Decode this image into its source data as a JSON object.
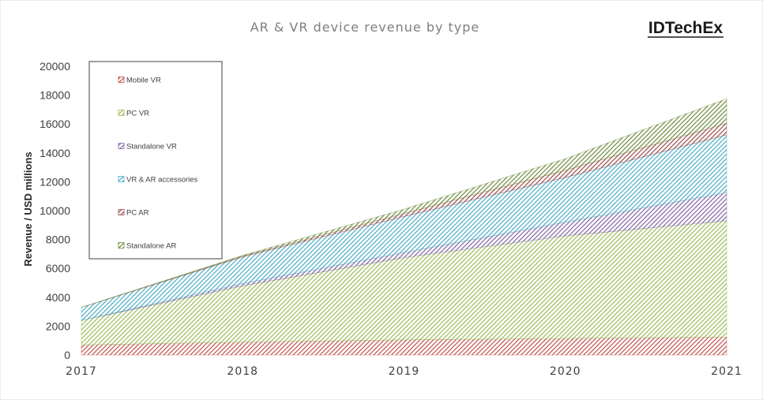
{
  "brand": "IDTechEx",
  "chart_data": {
    "type": "area",
    "stacked": true,
    "title": "AR & VR device revenue by type",
    "ylabel": "Revenue / USD millions",
    "xlabel": "",
    "x": [
      "2017",
      "2018",
      "2019",
      "2020",
      "2021"
    ],
    "ylim": [
      0,
      20000
    ],
    "yticks": [
      "0",
      "2000",
      "4000",
      "6000",
      "8000",
      "10000",
      "12000",
      "14000",
      "16000",
      "18000",
      "20000"
    ],
    "grid": false,
    "legend_position": "upper-left",
    "series": [
      {
        "name": "Mobile VR",
        "color": "#c0504d",
        "values": [
          700,
          900,
          1050,
          1150,
          1250
        ]
      },
      {
        "name": "PC VR",
        "color": "#9bbb59",
        "values": [
          1700,
          3900,
          5700,
          7100,
          8050
        ]
      },
      {
        "name": "Standalone VR",
        "color": "#8064a2",
        "values": [
          0,
          150,
          350,
          950,
          1950
        ]
      },
      {
        "name": "VR & AR accessories",
        "color": "#4bacc6",
        "values": [
          900,
          1850,
          2500,
          3100,
          4000
        ]
      },
      {
        "name": "PC AR",
        "color": "#9c4a4a",
        "values": [
          0,
          50,
          200,
          500,
          800
        ]
      },
      {
        "name": "Standalone AR",
        "color": "#6e8b3d",
        "values": [
          0,
          50,
          300,
          800,
          1700
        ]
      }
    ]
  }
}
